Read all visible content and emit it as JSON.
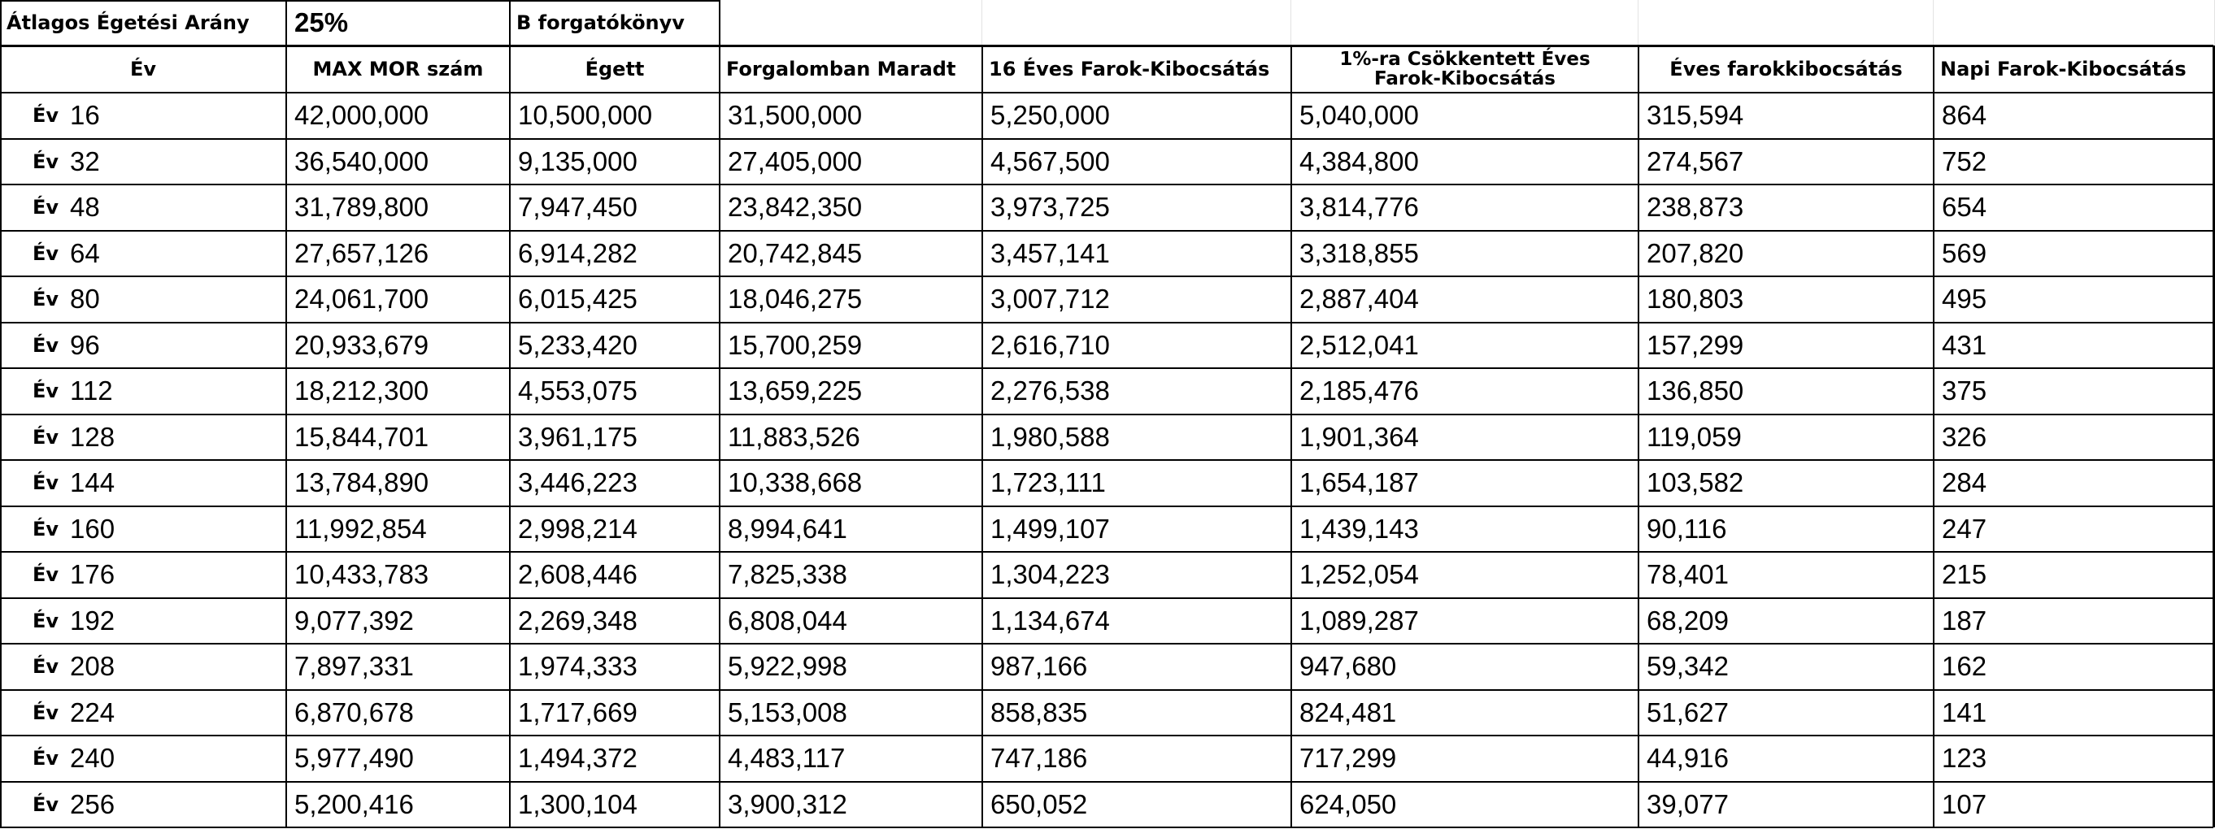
{
  "top_row": {
    "burn_rate_label": "Átlagos Égetési Arány",
    "burn_rate_value": "25%",
    "scenario_label": "B forgatókönyv"
  },
  "headers": [
    "Év",
    "MAX MOR szám",
    "Égett",
    "Forgalomban Maradt",
    "16 Éves Farok-Kibocsátás",
    "1%-ra Csökkentett Éves Farok-Kibocsátás",
    "Éves farokkibocsátás",
    "Napi Farok-Kibocsátás"
  ],
  "year_word": "Év",
  "rows": [
    [
      "16",
      "42,000,000",
      "10,500,000",
      "31,500,000",
      "5,250,000",
      "5,040,000",
      "315,594",
      "864"
    ],
    [
      "32",
      "36,540,000",
      "9,135,000",
      "27,405,000",
      "4,567,500",
      "4,384,800",
      "274,567",
      "752"
    ],
    [
      "48",
      "31,789,800",
      "7,947,450",
      "23,842,350",
      "3,973,725",
      "3,814,776",
      "238,873",
      "654"
    ],
    [
      "64",
      "27,657,126",
      "6,914,282",
      "20,742,845",
      "3,457,141",
      "3,318,855",
      "207,820",
      "569"
    ],
    [
      "80",
      "24,061,700",
      "6,015,425",
      "18,046,275",
      "3,007,712",
      "2,887,404",
      "180,803",
      "495"
    ],
    [
      "96",
      "20,933,679",
      "5,233,420",
      "15,700,259",
      "2,616,710",
      "2,512,041",
      "157,299",
      "431"
    ],
    [
      "112",
      "18,212,300",
      "4,553,075",
      "13,659,225",
      "2,276,538",
      "2,185,476",
      "136,850",
      "375"
    ],
    [
      "128",
      "15,844,701",
      "3,961,175",
      "11,883,526",
      "1,980,588",
      "1,901,364",
      "119,059",
      "326"
    ],
    [
      "144",
      "13,784,890",
      "3,446,223",
      "10,338,668",
      "1,723,111",
      "1,654,187",
      "103,582",
      "284"
    ],
    [
      "160",
      "11,992,854",
      "2,998,214",
      "8,994,641",
      "1,499,107",
      "1,439,143",
      "90,116",
      "247"
    ],
    [
      "176",
      "10,433,783",
      "2,608,446",
      "7,825,338",
      "1,304,223",
      "1,252,054",
      "78,401",
      "215"
    ],
    [
      "192",
      "9,077,392",
      "2,269,348",
      "6,808,044",
      "1,134,674",
      "1,089,287",
      "68,209",
      "187"
    ],
    [
      "208",
      "7,897,331",
      "1,974,333",
      "5,922,998",
      "987,166",
      "947,680",
      "59,342",
      "162"
    ],
    [
      "224",
      "6,870,678",
      "1,717,669",
      "5,153,008",
      "858,835",
      "824,481",
      "51,627",
      "141"
    ],
    [
      "240",
      "5,977,490",
      "1,494,372",
      "4,483,117",
      "747,186",
      "717,299",
      "44,916",
      "123"
    ],
    [
      "256",
      "5,200,416",
      "1,300,104",
      "3,900,312",
      "650,052",
      "624,050",
      "39,077",
      "107"
    ]
  ]
}
